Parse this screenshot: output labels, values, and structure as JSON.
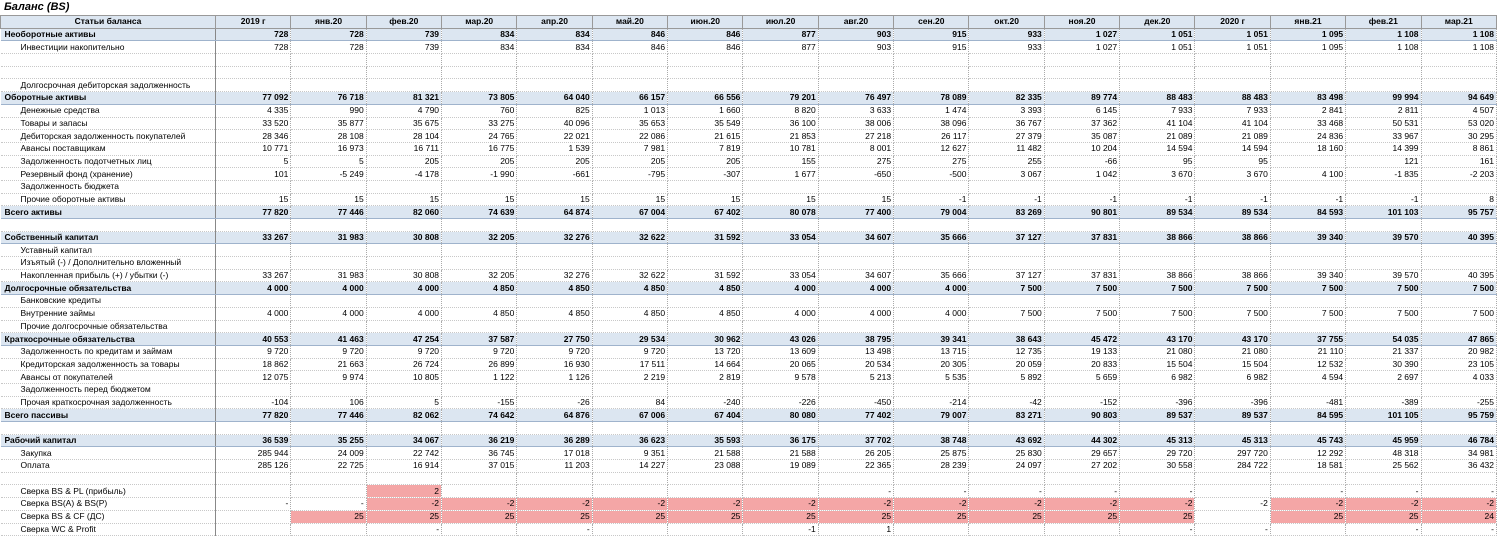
{
  "title": "Баланс (BS)",
  "table": {
    "header": [
      "Статьи баланса",
      "2019 г",
      "янв.20",
      "фев.20",
      "мар.20",
      "апр.20",
      "май.20",
      "июн.20",
      "июл.20",
      "авг.20",
      "сен.20",
      "окт.20",
      "ноя.20",
      "дек.20",
      "2020 г",
      "янв.21",
      "фев.21",
      "мар.21"
    ],
    "rows": [
      {
        "label": "Необоротные активы",
        "style": "total",
        "values": [
          "728",
          "728",
          "739",
          "834",
          "834",
          "846",
          "846",
          "877",
          "903",
          "915",
          "933",
          "1 027",
          "1 051",
          "1 051",
          "1 095",
          "1 108",
          "1 108"
        ]
      },
      {
        "label": "Инвестиции накопительно",
        "values": [
          "728",
          "728",
          "739",
          "834",
          "834",
          "846",
          "846",
          "877",
          "903",
          "915",
          "933",
          "1 027",
          "1 051",
          "1 051",
          "1 095",
          "1 108",
          "1 108"
        ]
      },
      {},
      {},
      {
        "label": "Долгосрочная дебиторская задолженность"
      },
      {
        "label": "Оборотные активы",
        "style": "total",
        "values": [
          "77 092",
          "76 718",
          "81 321",
          "73 805",
          "64 040",
          "66 157",
          "66 556",
          "79 201",
          "76 497",
          "78 089",
          "82 335",
          "89 774",
          "88 483",
          "88 483",
          "83 498",
          "99 994",
          "94 649"
        ]
      },
      {
        "label": "Денежные средства",
        "values": [
          "4 335",
          "990",
          "4 790",
          "760",
          "825",
          "1 013",
          "1 660",
          "8 820",
          "3 633",
          "1 474",
          "3 393",
          "6 145",
          "7 933",
          "7 933",
          "2 841",
          "2 811",
          "4 507"
        ]
      },
      {
        "label": "Товары и запасы",
        "values": [
          "33 520",
          "35 877",
          "35 675",
          "33 275",
          "40 096",
          "35 653",
          "35 549",
          "36 100",
          "38 006",
          "38 096",
          "36 767",
          "37 362",
          "41 104",
          "41 104",
          "33 468",
          "50 531",
          "53 020"
        ]
      },
      {
        "label": "Дебиторская задолженность покупателей",
        "values": [
          "28 346",
          "28 108",
          "28 104",
          "24 765",
          "22 021",
          "22 086",
          "21 615",
          "21 853",
          "27 218",
          "26 117",
          "27 379",
          "35 087",
          "21 089",
          "21 089",
          "24 836",
          "33 967",
          "30 295"
        ]
      },
      {
        "label": "Авансы поставщикам",
        "values": [
          "10 771",
          "16 973",
          "16 711",
          "16 775",
          "1 539",
          "7 981",
          "7 819",
          "10 781",
          "8 001",
          "12 627",
          "11 482",
          "10 204",
          "14 594",
          "14 594",
          "18 160",
          "14 399",
          "8 861"
        ]
      },
      {
        "label": "Задолженность подотчетных лиц",
        "values": [
          "5",
          "5",
          "205",
          "205",
          "205",
          "205",
          "205",
          "155",
          "275",
          "275",
          "255",
          "-66",
          "95",
          "95",
          null,
          "121",
          "161"
        ]
      },
      {
        "label": "Резервный фонд (хранение)",
        "values": [
          "101",
          "-5 249",
          "-4 178",
          "-1 990",
          "-661",
          "-795",
          "-307",
          "1 677",
          "-650",
          "-500",
          "3 067",
          "1 042",
          "3 670",
          "3 670",
          "4 100",
          "-1 835",
          "-2 203"
        ]
      },
      {
        "label": "Задолженность бюджета"
      },
      {
        "label": "Прочие оборотные активы",
        "values": [
          "15",
          "15",
          "15",
          "15",
          "15",
          "15",
          "15",
          "15",
          "15",
          "-1",
          "-1",
          "-1",
          "-1",
          "-1",
          "-1",
          "-1",
          "8"
        ]
      },
      {
        "label": "Всего активы",
        "style": "total",
        "values": [
          "77 820",
          "77 446",
          "82 060",
          "74 639",
          "64 874",
          "67 004",
          "67 402",
          "80 078",
          "77 400",
          "79 004",
          "83 269",
          "90 801",
          "89 534",
          "89 534",
          "84 593",
          "101 103",
          "95 757"
        ]
      },
      {},
      {
        "label": "Собственный капитал",
        "style": "total",
        "values": [
          "33 267",
          "31 983",
          "30 808",
          "32 205",
          "32 276",
          "32 622",
          "31 592",
          "33 054",
          "34 607",
          "35 666",
          "37 127",
          "37 831",
          "38 866",
          "38 866",
          "39 340",
          "39 570",
          "40 395"
        ]
      },
      {
        "label": "Уставный капитал"
      },
      {
        "label": "Изъятый (-) / Дополнительно вложенный"
      },
      {
        "label": "Накопленная прибыль (+) / убытки (-)",
        "values": [
          "33 267",
          "31 983",
          "30 808",
          "32 205",
          "32 276",
          "32 622",
          "31 592",
          "33 054",
          "34 607",
          "35 666",
          "37 127",
          "37 831",
          "38 866",
          "38 866",
          "39 340",
          "39 570",
          "40 395"
        ]
      },
      {
        "label": "Долгосрочные обязательства",
        "style": "total",
        "values": [
          "4 000",
          "4 000",
          "4 000",
          "4 850",
          "4 850",
          "4 850",
          "4 850",
          "4 000",
          "4 000",
          "4 000",
          "7 500",
          "7 500",
          "7 500",
          "7 500",
          "7 500",
          "7 500",
          "7 500"
        ]
      },
      {
        "label": "Банковские кредиты"
      },
      {
        "label": "Внутренние займы",
        "values": [
          "4 000",
          "4 000",
          "4 000",
          "4 850",
          "4 850",
          "4 850",
          "4 850",
          "4 000",
          "4 000",
          "4 000",
          "7 500",
          "7 500",
          "7 500",
          "7 500",
          "7 500",
          "7 500",
          "7 500"
        ]
      },
      {
        "label": "Прочие долгосрочные обязательства"
      },
      {
        "label": "Краткосрочные обязательства",
        "style": "total",
        "values": [
          "40 553",
          "41 463",
          "47 254",
          "37 587",
          "27 750",
          "29 534",
          "30 962",
          "43 026",
          "38 795",
          "39 341",
          "38 643",
          "45 472",
          "43 170",
          "43 170",
          "37 755",
          "54 035",
          "47 865"
        ]
      },
      {
        "label": "Задолженность по кредитам и займам",
        "values": [
          "9 720",
          "9 720",
          "9 720",
          "9 720",
          "9 720",
          "9 720",
          "13 720",
          "13 609",
          "13 498",
          "13 715",
          "12 735",
          "19 133",
          "21 080",
          "21 080",
          "21 110",
          "21 337",
          "20 982"
        ]
      },
      {
        "label": "Кредиторская задолженность за товары",
        "values": [
          "18 862",
          "21 663",
          "26 724",
          "26 899",
          "16 930",
          "17 511",
          "14 664",
          "20 065",
          "20 534",
          "20 305",
          "20 059",
          "20 833",
          "15 504",
          "15 504",
          "12 532",
          "30 390",
          "23 105"
        ]
      },
      {
        "label": "Авансы от покупателей",
        "values": [
          "12 075",
          "9 974",
          "10 805",
          "1 122",
          "1 126",
          "2 219",
          "2 819",
          "9 578",
          "5 213",
          "5 535",
          "5 892",
          "5 659",
          "6 982",
          "6 982",
          "4 594",
          "2 697",
          "4 033"
        ]
      },
      {
        "label": "Задолженность перед бюджетом"
      },
      {
        "label": "Прочая краткосрочная задолженность",
        "values": [
          "-104",
          "106",
          "5",
          "-155",
          "-26",
          "84",
          "-240",
          "-226",
          "-450",
          "-214",
          "-42",
          "-152",
          "-396",
          "-396",
          "-481",
          "-389",
          "-255"
        ]
      },
      {
        "label": "Всего пассивы",
        "style": "total",
        "values": [
          "77 820",
          "77 446",
          "82 062",
          "74 642",
          "64 876",
          "67 006",
          "67 404",
          "80 080",
          "77 402",
          "79 007",
          "83 271",
          "90 803",
          "89 537",
          "89 537",
          "84 595",
          "101 105",
          "95 759"
        ]
      },
      {},
      {
        "label": "Рабочий капитал",
        "style": "total",
        "values": [
          "36 539",
          "35 255",
          "34 067",
          "36 219",
          "36 289",
          "36 623",
          "35 593",
          "36 175",
          "37 702",
          "38 748",
          "43 692",
          "44 302",
          "45 313",
          "45 313",
          "45 743",
          "45 959",
          "46 784"
        ]
      },
      {
        "label": "Закупка",
        "values": [
          "285 944",
          "24 009",
          "22 742",
          "36 745",
          "17 018",
          "9 351",
          "21 588",
          "21 588",
          "26 205",
          "25 875",
          "25 830",
          "29 657",
          "29 720",
          "297 720",
          "12 292",
          "48 318",
          "34 981"
        ]
      },
      {
        "label": "Оплата",
        "values": [
          "285 126",
          "22 725",
          "16 914",
          "37 015",
          "11 203",
          "14 227",
          "23 088",
          "19 089",
          "22 365",
          "28 239",
          "24 097",
          "27 202",
          "30 558",
          "284 722",
          "18 581",
          "25 562",
          "36 432"
        ]
      },
      {},
      {
        "label": "Сверка BS & PL (прибыль)",
        "values": [
          null,
          null,
          "2",
          null,
          null,
          null,
          null,
          null,
          "-",
          "-",
          "-",
          "-",
          "-",
          null,
          "-",
          "-",
          "-"
        ],
        "highlight": [
          2
        ]
      },
      {
        "label": "Сверка BS(A) & BS(P)",
        "values": [
          "-",
          "-",
          "-2",
          "-2",
          "-2",
          "-2",
          "-2",
          "-2",
          "-2",
          "-2",
          "-2",
          "-2",
          "-2",
          "-2",
          "-2",
          "-2",
          "-2"
        ],
        "highlight": [
          2,
          3,
          4,
          5,
          6,
          7,
          8,
          9,
          10,
          11,
          12,
          14,
          15,
          16
        ]
      },
      {
        "label": "Сверка BS & CF (ДС)",
        "values": [
          null,
          "25",
          "25",
          "25",
          "25",
          "25",
          "25",
          "25",
          "25",
          "25",
          "25",
          "25",
          "25",
          null,
          "25",
          "25",
          "24"
        ],
        "highlight": [
          1,
          2,
          3,
          4,
          5,
          6,
          7,
          8,
          9,
          10,
          11,
          12,
          14,
          15,
          16
        ]
      },
      {
        "label": "Сверка WC & Profit",
        "values": [
          null,
          null,
          "-",
          null,
          "-",
          null,
          null,
          "-1",
          "1",
          null,
          null,
          null,
          "-",
          "-",
          null,
          "-",
          "-"
        ]
      }
    ]
  }
}
